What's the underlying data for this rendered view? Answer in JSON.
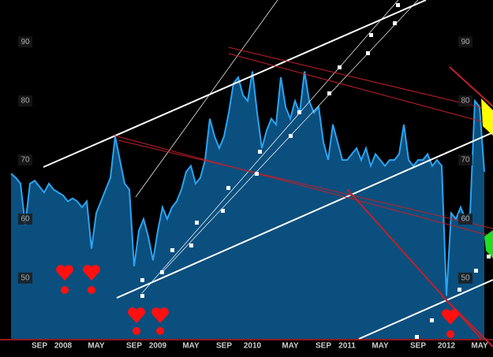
{
  "chart_data": {
    "type": "area",
    "categories": [
      null,
      null,
      null,
      null,
      null,
      null,
      "SEP",
      null,
      null,
      null,
      null,
      "2008",
      null,
      null,
      null,
      null,
      null,
      null,
      "MAY",
      null,
      null,
      null,
      null,
      null,
      null,
      null,
      "SEP",
      null,
      null,
      null,
      null,
      "2009",
      null,
      null,
      null,
      null,
      null,
      null,
      "MAY",
      null,
      null,
      null,
      null,
      null,
      null,
      "SEP",
      null,
      null,
      null,
      null,
      null,
      "2010",
      null,
      null,
      null,
      null,
      null,
      null,
      null,
      "MAY",
      null,
      null,
      null,
      null,
      null,
      null,
      "SEP",
      null,
      null,
      null,
      null,
      "2011",
      null,
      null,
      null,
      null,
      null,
      null,
      "MAY",
      null,
      null,
      null,
      null,
      null,
      null,
      null,
      "SEP",
      null,
      null,
      null,
      null,
      null,
      "2012",
      null,
      null,
      null,
      null,
      null,
      null,
      "MAY",
      null
    ],
    "values": [
      67.7,
      67,
      66,
      59,
      66,
      66.5,
      65.5,
      64.5,
      66,
      65,
      64.5,
      64,
      63,
      63.5,
      63,
      62,
      63,
      55,
      61,
      63,
      65,
      67,
      74,
      70,
      66,
      65,
      52,
      58,
      60,
      57,
      53,
      58,
      62,
      60,
      62,
      63,
      65,
      68,
      69,
      66,
      67,
      70,
      77,
      74,
      72,
      74,
      78,
      83,
      84,
      81,
      80,
      85,
      78,
      72,
      75,
      77,
      76,
      84,
      79,
      77,
      80,
      78,
      85,
      80,
      78,
      79,
      73,
      70,
      76,
      73,
      70,
      70,
      71,
      72,
      70,
      72,
      69,
      71,
      70,
      69,
      70,
      70,
      71,
      76,
      70,
      69,
      70,
      70,
      71,
      69,
      70,
      69,
      47,
      61,
      60,
      62,
      60,
      61,
      80,
      79,
      68
    ],
    "color": "#0b4f7e",
    "line_color": "#2ba4f2",
    "ylim": [
      39.7,
      97.1
    ],
    "yticks": [
      50,
      60,
      70,
      80,
      90
    ]
  }
}
